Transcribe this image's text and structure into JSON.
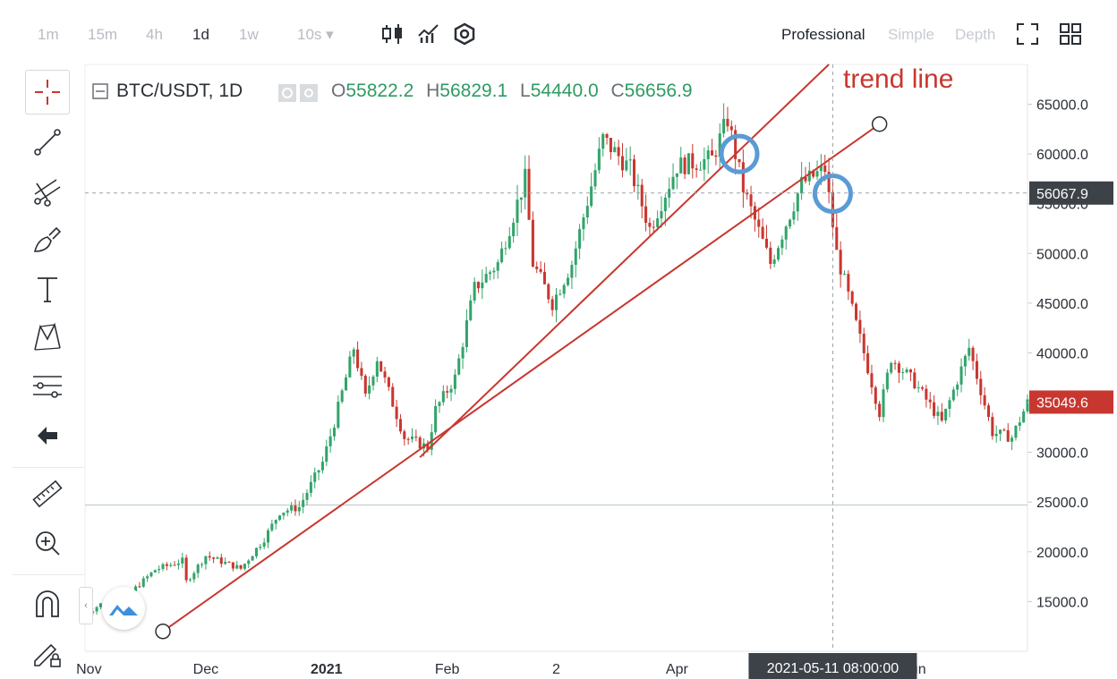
{
  "toolbar": {
    "timeframes": [
      "1m",
      "15m",
      "4h",
      "1d",
      "1w",
      "10s ▾"
    ],
    "active_timeframe": "1d",
    "icons": [
      "candlestick-icon",
      "indicators-icon",
      "settings-hex-icon"
    ],
    "modes": [
      "Professional",
      "Simple",
      "Depth"
    ],
    "active_mode": "Professional"
  },
  "sidebar": {
    "tools": [
      "crosshair-icon",
      "trendline-icon",
      "fib-lines-icon",
      "brush-icon",
      "text-icon",
      "pattern-icon",
      "levels-icon",
      "back-arrow-icon",
      "ruler-icon",
      "zoom-in-icon",
      "magnet-icon",
      "lock-pencil-icon"
    ]
  },
  "legend": {
    "pair": "BTC/USDT, 1D",
    "o_label": "O",
    "o_value": "55822.2",
    "h_label": "H",
    "h_value": "56829.1",
    "l_label": "L",
    "l_value": "54440.0",
    "c_label": "C",
    "c_value": "56656.9"
  },
  "annotation": "trend line",
  "colors": {
    "up": "#32a46a",
    "down": "#c8372f",
    "trend": "#c8372f",
    "circle": "#5b9bd5",
    "axis_text": "#2b2f36"
  },
  "chart_data": {
    "type": "candlestick",
    "title": "BTC/USDT, 1D",
    "ylim": [
      10000,
      69000
    ],
    "x_start": "2020-10-31",
    "x_end": "2021-06-30",
    "y_ticks": [
      15000,
      20000,
      25000,
      30000,
      35000,
      40000,
      45000,
      50000,
      55000,
      60000,
      65000
    ],
    "y_tick_labels": [
      "15000.0",
      "20000.0",
      "25000.0",
      "30000.0",
      "35000.0",
      "40000.0",
      "45000.0",
      "50000.0",
      "55000.0",
      "60000.0",
      "65000.0"
    ],
    "x_ticks": [
      {
        "date": "2020-11-01",
        "label": "Nov"
      },
      {
        "date": "2020-12-01",
        "label": "Dec"
      },
      {
        "date": "2021-01-01",
        "label": "2021"
      },
      {
        "date": "2021-02-01",
        "label": "Feb"
      },
      {
        "date": "2021-03-01",
        "label": "2"
      },
      {
        "date": "2021-04-01",
        "label": "Apr"
      },
      {
        "date": "2021-06-01",
        "label": "Jun"
      }
    ],
    "price_tags": [
      {
        "value": 56067.9,
        "label": "56067.9",
        "style": "dark"
      },
      {
        "value": 35049.6,
        "label": "35049.6",
        "style": "red"
      }
    ],
    "crosshair": {
      "date": "2021-05-11",
      "value": 56067.9,
      "label": "2021-05-11 08:00:00"
    },
    "horizontal_line": 24700,
    "trend_lines": [
      {
        "from": {
          "date": "2020-11-20",
          "value": 12000
        },
        "to": {
          "date": "2021-05-23",
          "value": 63000
        },
        "anchors": true
      },
      {
        "from": {
          "date": "2021-01-25",
          "value": 29500
        },
        "to": {
          "date": "2021-05-10",
          "value": 69000
        },
        "anchors": false
      }
    ],
    "break_circles": [
      {
        "date": "2021-04-17",
        "value": 60000
      },
      {
        "date": "2021-05-11",
        "value": 56000
      }
    ],
    "keypoints": [
      [
        "2020-10-31",
        13700
      ],
      [
        "2020-11-05",
        15000
      ],
      [
        "2020-11-12",
        16000
      ],
      [
        "2020-11-18",
        18200
      ],
      [
        "2020-11-25",
        19100
      ],
      [
        "2020-11-26",
        17000
      ],
      [
        "2020-12-01",
        19600
      ],
      [
        "2020-12-10",
        18300
      ],
      [
        "2020-12-16",
        21300
      ],
      [
        "2020-12-20",
        24000
      ],
      [
        "2020-12-25",
        24500
      ],
      [
        "2020-12-31",
        29000
      ],
      [
        "2021-01-03",
        33000
      ],
      [
        "2021-01-08",
        40500
      ],
      [
        "2021-01-11",
        35500
      ],
      [
        "2021-01-14",
        39500
      ],
      [
        "2021-01-21",
        31500
      ],
      [
        "2021-01-27",
        30500
      ],
      [
        "2021-01-29",
        34300
      ],
      [
        "2021-02-03",
        37500
      ],
      [
        "2021-02-08",
        46500
      ],
      [
        "2021-02-14",
        49000
      ],
      [
        "2021-02-21",
        57500
      ],
      [
        "2021-02-23",
        49000
      ],
      [
        "2021-02-28",
        45000
      ],
      [
        "2021-03-05",
        49000
      ],
      [
        "2021-03-13",
        61500
      ],
      [
        "2021-03-20",
        58500
      ],
      [
        "2021-03-25",
        52500
      ],
      [
        "2021-04-01",
        58800
      ],
      [
        "2021-04-10",
        59500
      ],
      [
        "2021-04-14",
        63500
      ],
      [
        "2021-04-18",
        56500
      ],
      [
        "2021-04-25",
        49000
      ],
      [
        "2021-05-03",
        57000
      ],
      [
        "2021-05-09",
        58500
      ],
      [
        "2021-05-12",
        50000
      ],
      [
        "2021-05-19",
        40000
      ],
      [
        "2021-05-23",
        34000
      ],
      [
        "2021-05-26",
        39500
      ],
      [
        "2021-06-01",
        37000
      ],
      [
        "2021-06-08",
        33000
      ],
      [
        "2021-06-15",
        40500
      ],
      [
        "2021-06-21",
        32000
      ],
      [
        "2021-06-26",
        31500
      ],
      [
        "2021-06-30",
        35000
      ]
    ]
  }
}
